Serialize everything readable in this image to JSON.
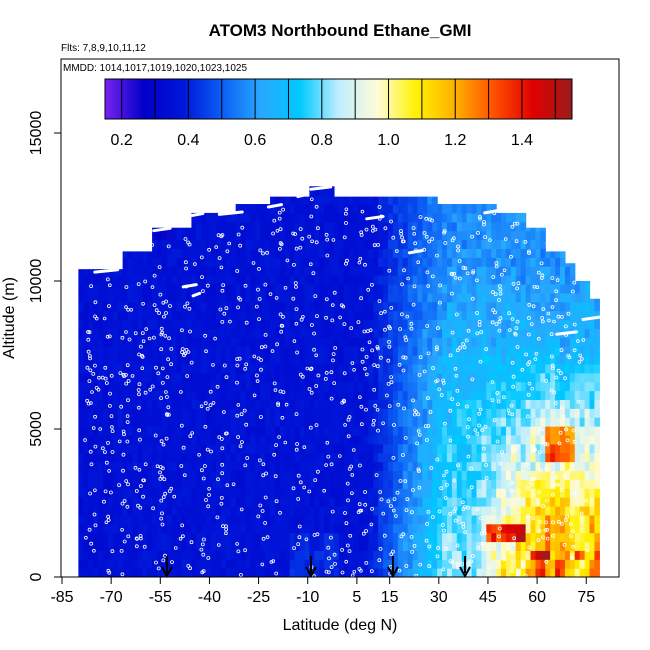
{
  "chart_data": {
    "type": "heatmap",
    "title": "ATOM3 Northbound Ethane_GMI",
    "subtitle_flights": "Flts: 7,8,9,10,11,12",
    "subtitle_dates": "MMDD: 1014,1017,1019,1020,1023,1025",
    "xlabel": "Latitude (deg N)",
    "ylabel": "Altitude (m)",
    "xlim": [
      -85,
      85
    ],
    "ylim": [
      0,
      17500
    ],
    "x_ticks": [
      -85,
      -70,
      -55,
      -40,
      -25,
      -10,
      5,
      15,
      30,
      45,
      60,
      75
    ],
    "x_tick_labels": [
      "-85",
      "-70",
      "-55",
      "-40",
      "-25",
      "-10",
      "5",
      "15",
      "30",
      "45",
      "60",
      "75"
    ],
    "y_ticks": [
      0,
      5000,
      10000,
      15000
    ],
    "y_tick_labels": [
      "0",
      "5000",
      "10000",
      "15000"
    ],
    "colorbar": {
      "range": [
        0.15,
        1.55
      ],
      "ticks": [
        0.2,
        0.4,
        0.6,
        0.8,
        1.0,
        1.2,
        1.4
      ],
      "tick_labels": [
        "0.2",
        "0.4",
        "0.6",
        "0.8",
        "1.0",
        "1.2",
        "1.4"
      ],
      "colors": [
        "#7a22f0",
        "#0000c8",
        "#0016d8",
        "#0b5df5",
        "#28a8ff",
        "#00c8ff",
        "#bfeeff",
        "#fffbd8",
        "#fff200",
        "#ffb000",
        "#ff5000",
        "#e00000",
        "#9a1c1c"
      ]
    },
    "arrow_latitudes": [
      -53,
      -9,
      16,
      38
    ],
    "approx_field": {
      "description": "ethane mixing ratio curtain; low (~0.3-0.4) over the southern hemisphere, increasing north of ~10N to 0.9-1.5 in the lower troposphere at 40-75N",
      "lat_extent": [
        -80,
        79
      ],
      "top_altitude_m": 13000
    }
  }
}
